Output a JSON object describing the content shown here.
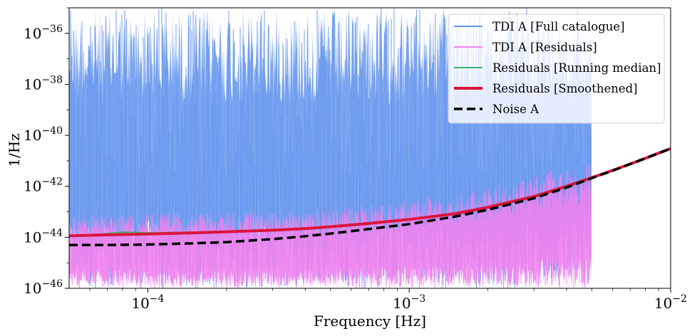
{
  "chart_data": {
    "type": "line",
    "x_scale": "log",
    "y_scale": "log",
    "xlabel": "Frequency [Hz]",
    "ylabel": "1/Hz",
    "xlim": [
      5e-05,
      0.01
    ],
    "ylim": [
      1e-46,
      1e-35
    ],
    "x_ticks": [
      {
        "value": 0.0001,
        "base": "10",
        "exp": "−4"
      },
      {
        "value": 0.001,
        "base": "10",
        "exp": "−3"
      },
      {
        "value": 0.01,
        "base": "10",
        "exp": "−2"
      }
    ],
    "y_ticks": [
      {
        "value": 1e-46,
        "base": "10",
        "exp": "−46"
      },
      {
        "value": 1e-44,
        "base": "10",
        "exp": "−44"
      },
      {
        "value": 1e-42,
        "base": "10",
        "exp": "−42"
      },
      {
        "value": 1e-40,
        "base": "10",
        "exp": "−40"
      },
      {
        "value": 1e-38,
        "base": "10",
        "exp": "−38"
      },
      {
        "value": 1e-36,
        "base": "10",
        "exp": "−36"
      }
    ],
    "grid": false,
    "legend_position": "top-right",
    "series": [
      {
        "name": "TDI A [Full catalogue]",
        "color": "#6495ed",
        "style": "noisy-band",
        "x_range": [
          5e-05,
          0.005
        ],
        "x": [
          5e-05,
          0.0001,
          0.0002,
          0.0005,
          0.001,
          0.002,
          0.003,
          0.005
        ],
        "upper": [
          1e-35,
          1e-35,
          1e-35,
          1e-35,
          1e-35,
          1e-35,
          1e-35,
          1e-35
        ],
        "lower": [
          1e-46,
          1e-46,
          1e-46,
          1e-46,
          1e-46,
          1e-46,
          1e-46,
          5e-46
        ]
      },
      {
        "name": "TDI A [Residuals]",
        "color": "#ee82ee",
        "style": "noisy-band",
        "x_range": [
          5e-05,
          0.005
        ],
        "x": [
          5e-05,
          0.0001,
          0.0002,
          0.0005,
          0.001,
          0.002,
          0.003,
          0.005
        ],
        "upper": [
          8e-44,
          1e-43,
          1e-43,
          1.5e-43,
          3e-43,
          1e-42,
          3e-42,
          1e-41
        ],
        "lower": [
          1e-46,
          1e-46,
          1e-46,
          1e-46,
          1e-46,
          1e-46,
          1e-46,
          1e-46
        ]
      },
      {
        "name": "Residuals [Running median]",
        "color": "#3cb371",
        "style": "line",
        "width": 2,
        "x": [
          5e-05,
          6.5e-05,
          8e-05,
          0.0001,
          0.00015,
          0.0002,
          0.0003,
          0.0005,
          0.0007,
          0.001,
          0.0015,
          0.002,
          0.003,
          0.004,
          0.005
        ],
        "y": [
          1.15e-44,
          1.3e-44,
          1.6e-44,
          1.5e-44,
          1.6e-44,
          1.7e-44,
          1.9e-44,
          2.6e-44,
          3.5e-44,
          5e-44,
          8.5e-44,
          1.5e-43,
          4e-43,
          1e-42,
          2.2e-42
        ]
      },
      {
        "name": "Residuals [Smoothened]",
        "color": "#dc143c",
        "style": "line",
        "width": 4,
        "x": [
          5e-05,
          7e-05,
          0.0001,
          0.00015,
          0.0002,
          0.0003,
          0.0004,
          0.0005,
          0.0007,
          0.001,
          0.0015,
          0.002,
          0.003,
          0.004,
          0.005,
          0.006,
          0.007,
          0.008,
          0.009,
          0.01
        ],
        "y": [
          1.15e-44,
          1.25e-44,
          1.35e-44,
          1.5e-44,
          1.65e-44,
          1.9e-44,
          2.2e-44,
          2.6e-44,
          3.5e-44,
          5e-44,
          8.5e-44,
          1.5e-43,
          4e-43,
          1e-42,
          2.2e-42,
          4.2e-42,
          7.5e-42,
          1.25e-41,
          2e-41,
          3e-41
        ]
      },
      {
        "name": "Noise A",
        "color": "#000000",
        "style": "dashed",
        "width": 3.5,
        "x": [
          5e-05,
          7e-05,
          0.0001,
          0.00015,
          0.0002,
          0.0003,
          0.0004,
          0.0005,
          0.0007,
          0.001,
          0.0015,
          0.002,
          0.003,
          0.004,
          0.005,
          0.006,
          0.007,
          0.008,
          0.009,
          0.01
        ],
        "y": [
          5e-45,
          5e-45,
          5.2e-45,
          5.8e-45,
          6.5e-45,
          8.5e-45,
          1.1e-44,
          1.4e-44,
          2.1e-44,
          3.3e-44,
          6.5e-44,
          1.2e-43,
          3.4e-43,
          9e-43,
          2.1e-42,
          4.1e-42,
          7.4e-42,
          1.25e-41,
          2e-41,
          3e-41
        ]
      }
    ]
  }
}
